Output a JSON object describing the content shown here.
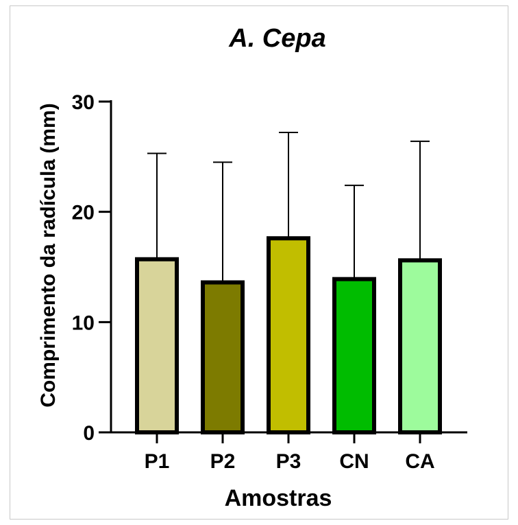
{
  "chart_data": {
    "type": "bar",
    "title": "A. Cepa",
    "xlabel": "Amostras",
    "ylabel": "Comprimento da radícula (mm)",
    "categories": [
      "P1",
      "P2",
      "P3",
      "CN",
      "CA"
    ],
    "values": [
      15.7,
      13.6,
      17.6,
      13.9,
      15.6
    ],
    "error_upper": [
      25.3,
      24.5,
      27.2,
      22.4,
      26.4
    ],
    "colors": [
      "#d8d49a",
      "#7d7b00",
      "#c1be00",
      "#00bc00",
      "#9dfb9c"
    ],
    "yticks": [
      0,
      10,
      20,
      30
    ],
    "ylim": [
      0,
      30
    ],
    "grid": false,
    "legend": "none"
  }
}
